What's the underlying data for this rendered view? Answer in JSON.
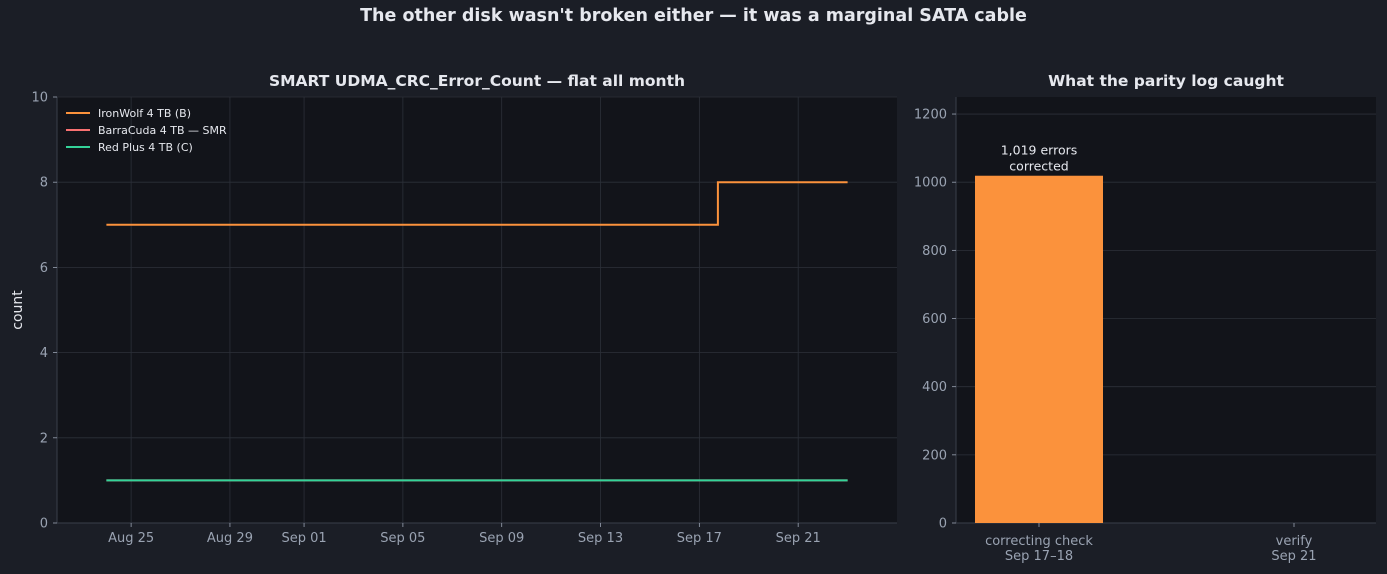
{
  "suptitle": "The other disk wasn't broken either — it was a marginal SATA cable",
  "colors": {
    "figure_bg": "#1b1e26",
    "axes_bg": "#12141a",
    "grid": "#2c3039",
    "tick": "#9aa3b2",
    "text": "#e6e8ee"
  },
  "chart_data": [
    {
      "type": "line",
      "title": "SMART UDMA_CRC_Error_Count — flat all month",
      "ylabel": "count",
      "xlabel": "",
      "ylim": [
        0,
        10
      ],
      "yticks": [
        0,
        2,
        4,
        6,
        8,
        10
      ],
      "xlim": [
        "2023-08-22",
        "2023-09-25"
      ],
      "xticks": [
        {
          "date": "2023-08-25",
          "label": "Aug 25"
        },
        {
          "date": "2023-08-29",
          "label": "Aug 29"
        },
        {
          "date": "2023-09-01",
          "label": "Sep 01"
        },
        {
          "date": "2023-09-05",
          "label": "Sep 05"
        },
        {
          "date": "2023-09-09",
          "label": "Sep 09"
        },
        {
          "date": "2023-09-13",
          "label": "Sep 13"
        },
        {
          "date": "2023-09-17",
          "label": "Sep 17"
        },
        {
          "date": "2023-09-21",
          "label": "Sep 21"
        }
      ],
      "grid": true,
      "legend_position": "upper-left",
      "series": [
        {
          "name": "IronWolf 4 TB (B)",
          "color": "#fb923c",
          "step": true,
          "points": [
            [
              "2023-08-24",
              7
            ],
            [
              "2023-09-17T18:00",
              7
            ],
            [
              "2023-09-17T18:00",
              8
            ],
            [
              "2023-09-23",
              8
            ]
          ]
        },
        {
          "name": "BarraCuda 4 TB — SMR",
          "color": "#f87171",
          "step": true,
          "points": [
            [
              "2023-08-24",
              1
            ],
            [
              "2023-09-23",
              1
            ]
          ]
        },
        {
          "name": "Red Plus 4 TB (C)",
          "color": "#34d399",
          "step": true,
          "points": [
            [
              "2023-08-24",
              1
            ],
            [
              "2023-09-23",
              1
            ]
          ]
        }
      ]
    },
    {
      "type": "bar",
      "title": "What the parity log caught",
      "ylim": [
        0,
        1250
      ],
      "yticks": [
        0,
        200,
        400,
        600,
        800,
        1000,
        1200
      ],
      "grid": true,
      "categories": [
        [
          "correcting check",
          "Sep 17–18"
        ],
        [
          "verify",
          "Sep 21"
        ]
      ],
      "values": [
        1019,
        0
      ],
      "bar_color": "#fb923c",
      "annotations": [
        [
          "1,019 errors",
          "corrected"
        ],
        null
      ]
    }
  ]
}
